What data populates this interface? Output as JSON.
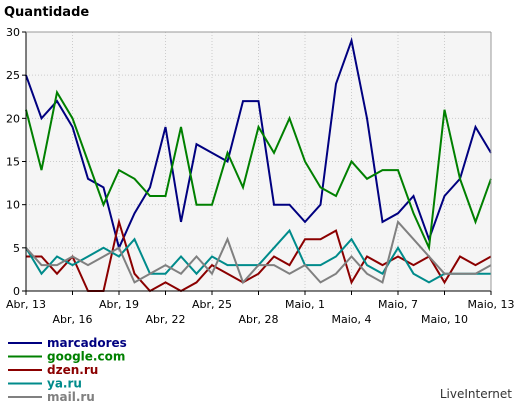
{
  "chart_data": {
    "type": "line",
    "title": "Quantidade",
    "ylabel": "",
    "xlabel": "",
    "ylim": [
      0,
      30
    ],
    "yticks": [
      0,
      5,
      10,
      15,
      20,
      25,
      30
    ],
    "grid": true,
    "legend_position": "bottom-left",
    "x_tick_labels": [
      {
        "label": "Abr, 13",
        "day": 0,
        "row": 0
      },
      {
        "label": "Abr, 16",
        "day": 3,
        "row": 1
      },
      {
        "label": "Abr, 19",
        "day": 6,
        "row": 0
      },
      {
        "label": "Abr, 22",
        "day": 9,
        "row": 1
      },
      {
        "label": "Abr, 25",
        "day": 12,
        "row": 0
      },
      {
        "label": "Abr, 28",
        "day": 15,
        "row": 1
      },
      {
        "label": "Maio, 1",
        "day": 18,
        "row": 0
      },
      {
        "label": "Maio, 4",
        "day": 21,
        "row": 1
      },
      {
        "label": "Maio, 7",
        "day": 24,
        "row": 0
      },
      {
        "label": "Maio, 10",
        "day": 27,
        "row": 1
      },
      {
        "label": "Maio, 13",
        "day": 30,
        "row": 0
      }
    ],
    "series": [
      {
        "name": "marcadores",
        "color": "#000080",
        "values": [
          25,
          20,
          22,
          19,
          13,
          12,
          5,
          9,
          12,
          19,
          8,
          17,
          16,
          15,
          22,
          22,
          10,
          10,
          8,
          10,
          24,
          29,
          20,
          8,
          9,
          11,
          6,
          11,
          13,
          19,
          16
        ]
      },
      {
        "name": "google.com",
        "color": "#008000",
        "values": [
          21,
          14,
          23,
          20,
          15,
          10,
          14,
          13,
          11,
          11,
          19,
          10,
          10,
          16,
          12,
          19,
          16,
          20,
          15,
          12,
          11,
          15,
          13,
          14,
          14,
          9,
          5,
          21,
          13,
          8,
          13
        ]
      },
      {
        "name": "dzen.ru",
        "color": "#8b0000",
        "values": [
          4,
          4,
          2,
          4,
          0,
          0,
          8,
          2,
          0,
          1,
          0,
          1,
          3,
          2,
          1,
          2,
          4,
          3,
          6,
          6,
          7,
          1,
          4,
          3,
          4,
          3,
          4,
          1,
          4,
          3,
          4
        ]
      },
      {
        "name": "ya.ru",
        "color": "#008b8b",
        "values": [
          5,
          2,
          4,
          3,
          4,
          5,
          4,
          6,
          2,
          2,
          4,
          2,
          4,
          3,
          3,
          3,
          5,
          7,
          3,
          3,
          4,
          6,
          3,
          2,
          5,
          2,
          1,
          2,
          2,
          2,
          2
        ]
      },
      {
        "name": "mail.ru",
        "color": "#808080",
        "values": [
          5,
          3,
          3,
          4,
          3,
          4,
          5,
          1,
          2,
          3,
          2,
          4,
          2,
          6,
          1,
          3,
          3,
          2,
          3,
          1,
          2,
          4,
          2,
          1,
          8,
          6,
          4,
          2,
          2,
          2,
          3
        ]
      }
    ]
  },
  "watermark": "LiveInternet"
}
